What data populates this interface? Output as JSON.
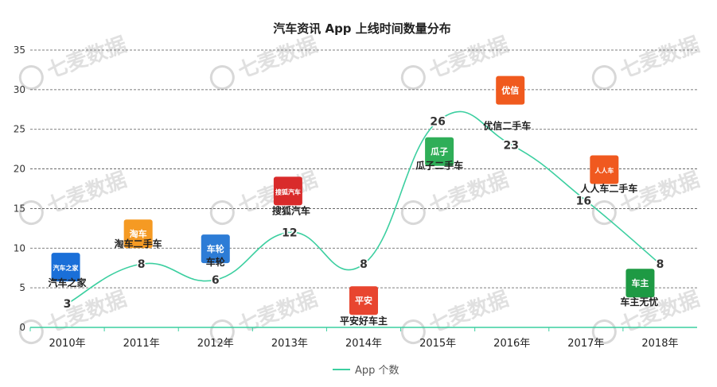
{
  "chart_data": {
    "type": "line",
    "title": "汽车资讯 App 上线时间数量分布",
    "categories": [
      "2010年",
      "2011年",
      "2012年",
      "2013年",
      "2014年",
      "2015年",
      "2016年",
      "2017年",
      "2018年"
    ],
    "series": [
      {
        "name": "App 个数",
        "values": [
          3,
          8,
          6,
          12,
          8,
          26,
          23,
          16,
          8
        ],
        "color": "#3ccfa0"
      }
    ],
    "ylim": [
      0,
      35
    ],
    "yticks": [
      0,
      5,
      10,
      15,
      20,
      25,
      30,
      35
    ],
    "grid": true,
    "legend_position": "bottom",
    "annotations": [
      {
        "year_index": 0,
        "value": 3,
        "app": "汽车之家",
        "logo_text": "汽车之家",
        "logo_color": "#1a6fd8"
      },
      {
        "year_index": 1,
        "value": 8,
        "app": "淘车二手车",
        "logo_text": "淘车",
        "logo_color": "#f59a23"
      },
      {
        "year_index": 2,
        "value": 6,
        "app": "车轮",
        "logo_text": "车轮",
        "logo_color": "#2d7cd6"
      },
      {
        "year_index": 3,
        "value": 12,
        "app": "搜狐汽车",
        "logo_text": "搜狐汽车",
        "logo_color": "#d92b2b"
      },
      {
        "year_index": 4,
        "value": 8,
        "app": "平安好车主",
        "logo_text": "平安",
        "logo_color": "#e8452f"
      },
      {
        "year_index": 5,
        "value": 26,
        "app": "瓜子二手车",
        "logo_text": "瓜子",
        "logo_color": "#2fae58"
      },
      {
        "year_index": 6,
        "value": 23,
        "app": "优信二手车",
        "logo_text": "优信",
        "logo_color": "#f05a1e"
      },
      {
        "year_index": 7,
        "value": 16,
        "app": "人人车二手车",
        "logo_text": "人人车",
        "logo_color": "#f0591f"
      },
      {
        "year_index": 8,
        "value": 8,
        "app": "车主无忧",
        "logo_text": "车主",
        "logo_color": "#1e9a44"
      }
    ]
  },
  "watermark": {
    "text": "七麦数据",
    "color": "#d8d8d8"
  }
}
